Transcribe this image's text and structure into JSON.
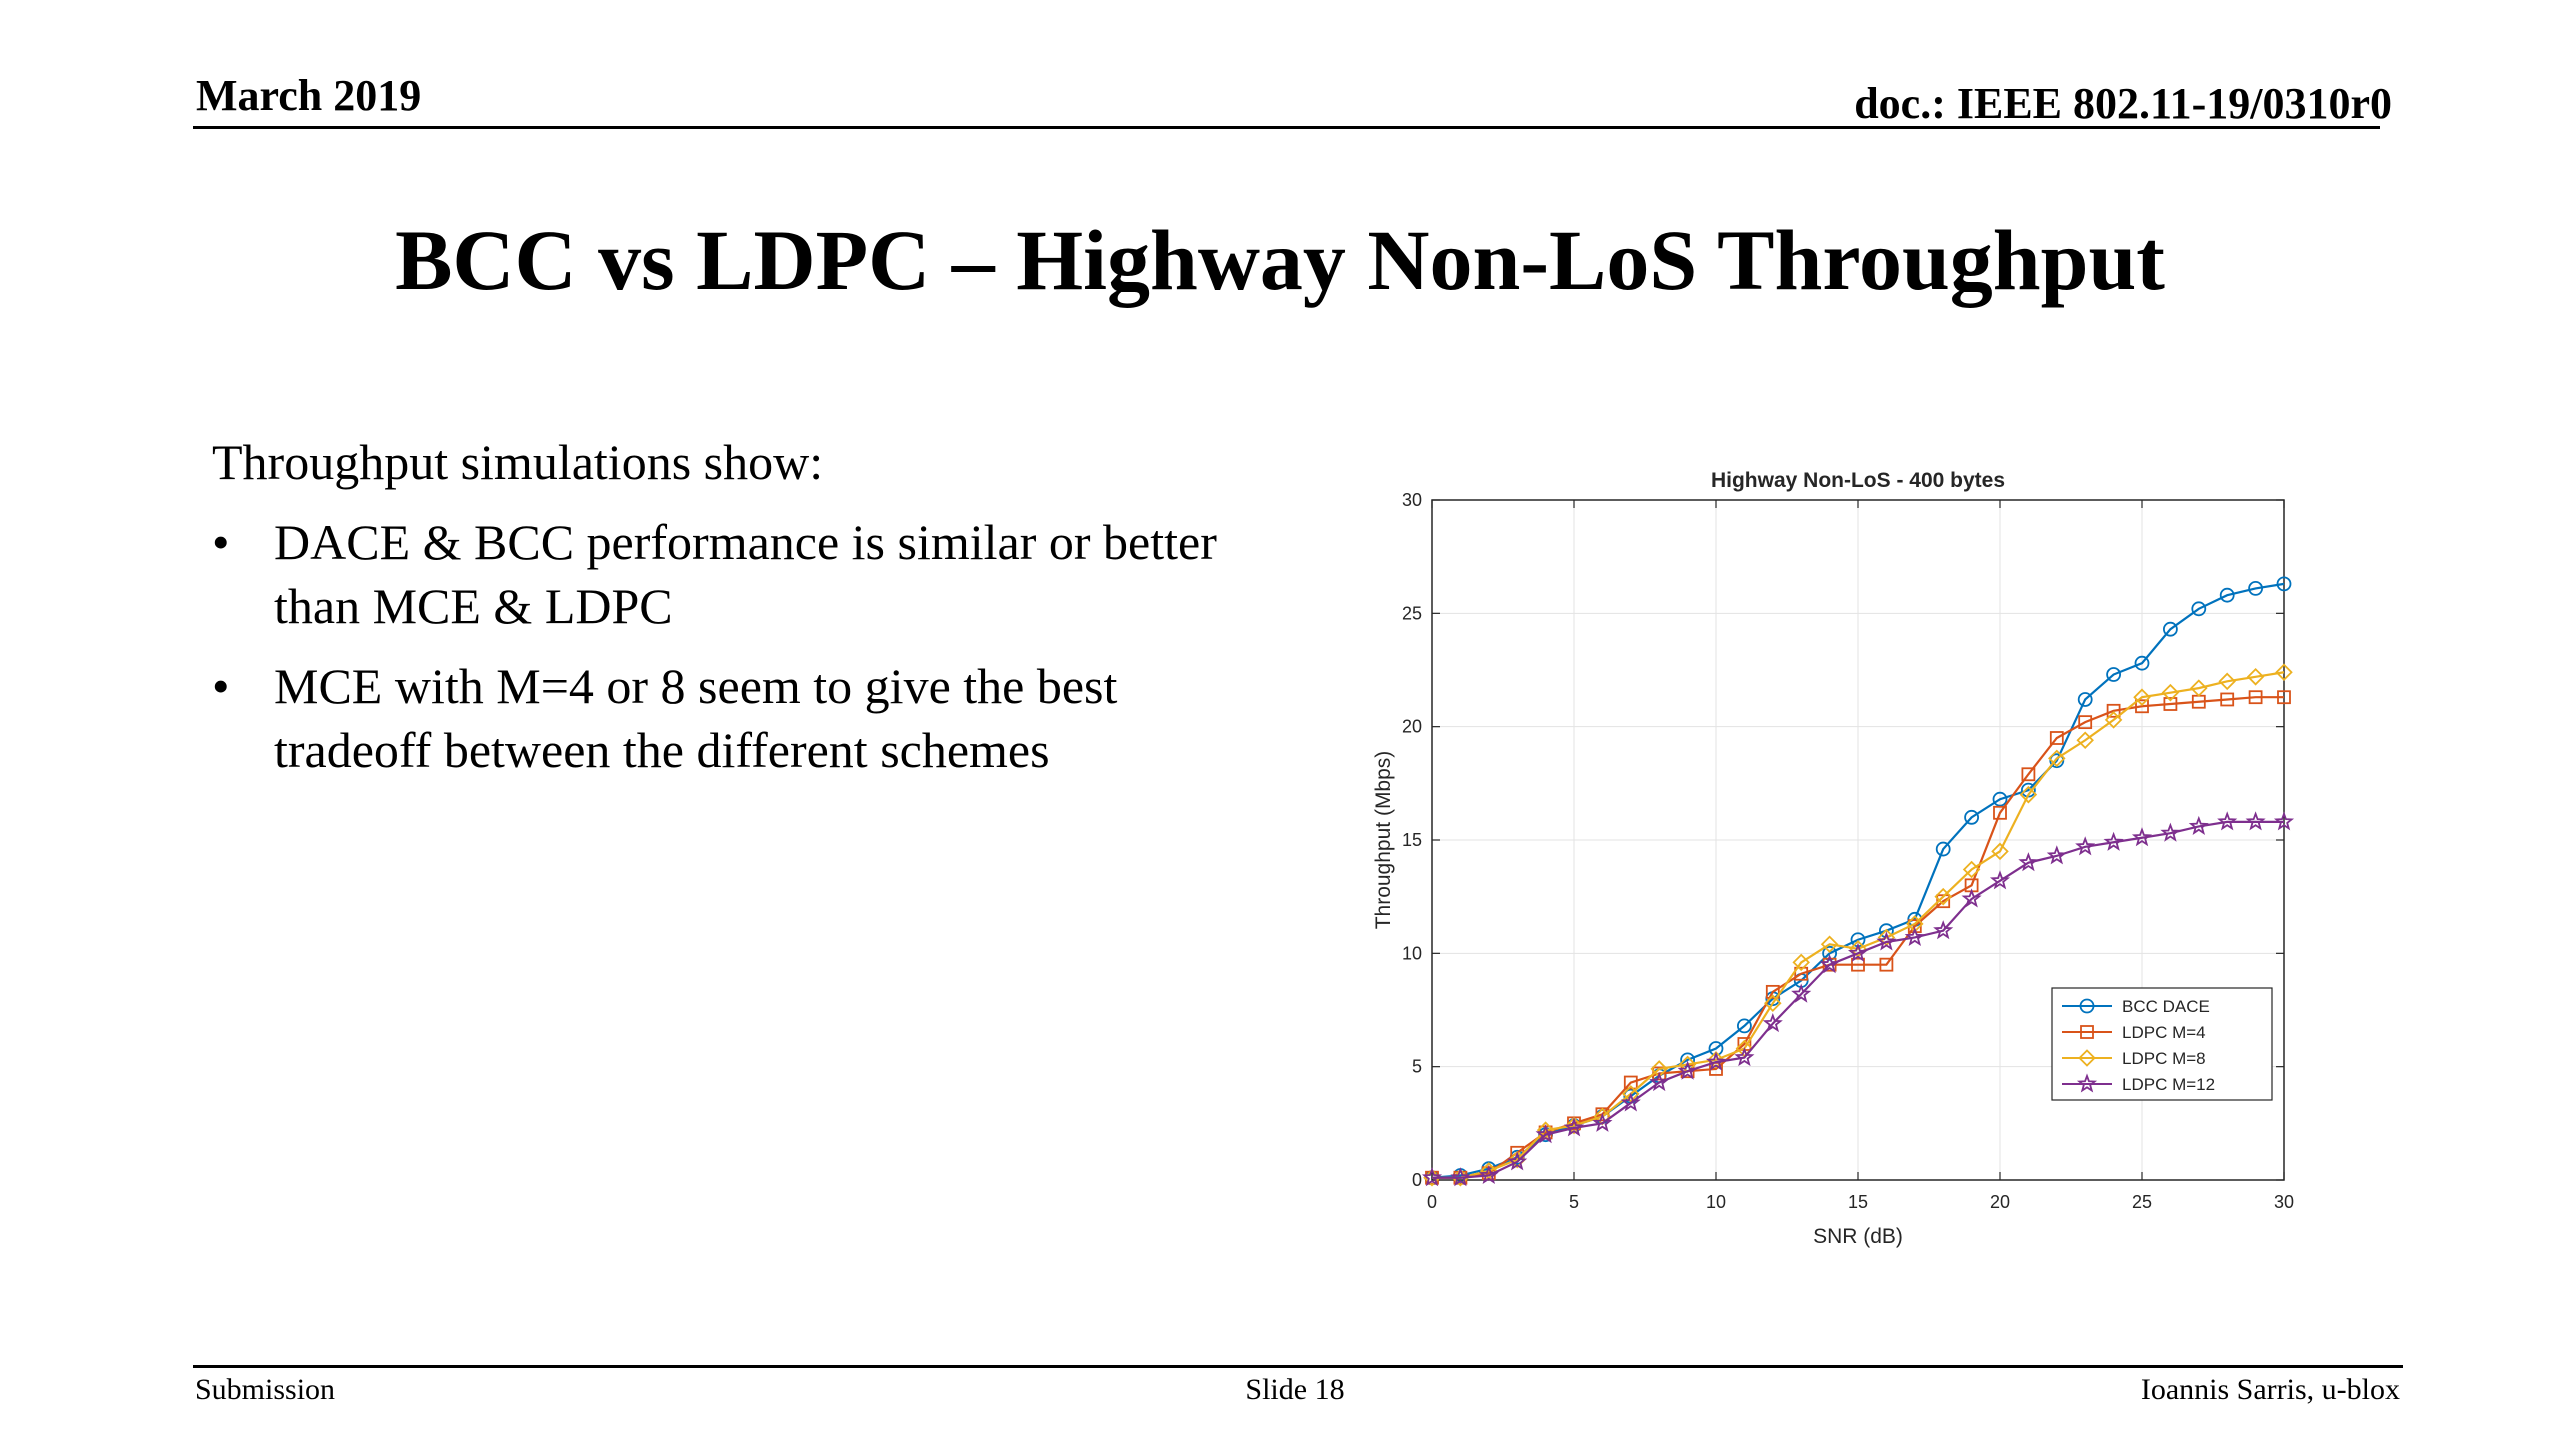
{
  "header": {
    "date": "March 2019",
    "doc": "doc.: IEEE 802.11-19/0310r0"
  },
  "title": "BCC vs LDPC – Highway Non-LoS Throughput",
  "body": {
    "intro": "Throughput simulations show:",
    "bullets": [
      "DACE & BCC performance is similar or better than MCE & LDPC",
      "MCE with M=4 or 8 seem to give the best tradeoff between the different schemes"
    ]
  },
  "footer": {
    "left": "Submission",
    "center": "Slide 18",
    "right": "Ioannis Sarris, u-blox"
  },
  "chart_data": {
    "type": "line",
    "title": "Highway Non-LoS - 400 bytes",
    "xlabel": "SNR (dB)",
    "ylabel": "Throughput (Mbps)",
    "xlim": [
      0,
      30
    ],
    "ylim": [
      0,
      30
    ],
    "xticks": [
      0,
      5,
      10,
      15,
      20,
      25,
      30
    ],
    "yticks": [
      0,
      5,
      10,
      15,
      20,
      25,
      30
    ],
    "grid": true,
    "legend_position": "bottom-right",
    "x": [
      0,
      1,
      2,
      3,
      4,
      5,
      6,
      7,
      8,
      9,
      10,
      11,
      12,
      13,
      14,
      15,
      16,
      17,
      18,
      19,
      20,
      21,
      22,
      23,
      24,
      25,
      26,
      27,
      28,
      29,
      30
    ],
    "series": [
      {
        "name": "BCC DACE",
        "color": "#0072BD",
        "marker": "circle",
        "values": [
          0.1,
          0.2,
          0.5,
          1.0,
          2.0,
          2.4,
          2.8,
          3.7,
          4.6,
          5.3,
          5.8,
          6.8,
          8.0,
          8.8,
          10.0,
          10.6,
          11.0,
          11.5,
          14.6,
          16.0,
          16.8,
          17.2,
          18.5,
          21.2,
          22.3,
          22.8,
          24.3,
          25.2,
          25.8,
          26.1,
          26.3
        ]
      },
      {
        "name": "LDPC M=4",
        "color": "#D95319",
        "marker": "square",
        "values": [
          0.1,
          0.1,
          0.3,
          1.2,
          2.1,
          2.5,
          2.9,
          4.3,
          4.7,
          4.8,
          4.9,
          6.0,
          8.3,
          9.1,
          9.5,
          9.5,
          9.5,
          11.2,
          12.3,
          13.0,
          16.2,
          17.9,
          19.5,
          20.2,
          20.7,
          20.9,
          21.0,
          21.1,
          21.2,
          21.3,
          21.3
        ]
      },
      {
        "name": "LDPC M=8",
        "color": "#EDB120",
        "marker": "diamond",
        "values": [
          0.1,
          0.1,
          0.4,
          0.9,
          2.2,
          2.4,
          2.8,
          3.8,
          4.9,
          5.1,
          5.3,
          5.8,
          7.8,
          9.6,
          10.4,
          10.2,
          10.7,
          11.3,
          12.5,
          13.7,
          14.5,
          17.0,
          18.6,
          19.4,
          20.3,
          21.3,
          21.5,
          21.7,
          22.0,
          22.2,
          22.4
        ]
      },
      {
        "name": "LDPC M=12",
        "color": "#7E2F8E",
        "marker": "star",
        "values": [
          0.1,
          0.1,
          0.2,
          0.8,
          2.0,
          2.3,
          2.5,
          3.4,
          4.3,
          4.8,
          5.2,
          5.4,
          6.9,
          8.2,
          9.5,
          10.0,
          10.5,
          10.7,
          11.0,
          12.4,
          13.2,
          14.0,
          14.3,
          14.7,
          14.9,
          15.1,
          15.3,
          15.6,
          15.8,
          15.8,
          15.8
        ]
      }
    ]
  }
}
